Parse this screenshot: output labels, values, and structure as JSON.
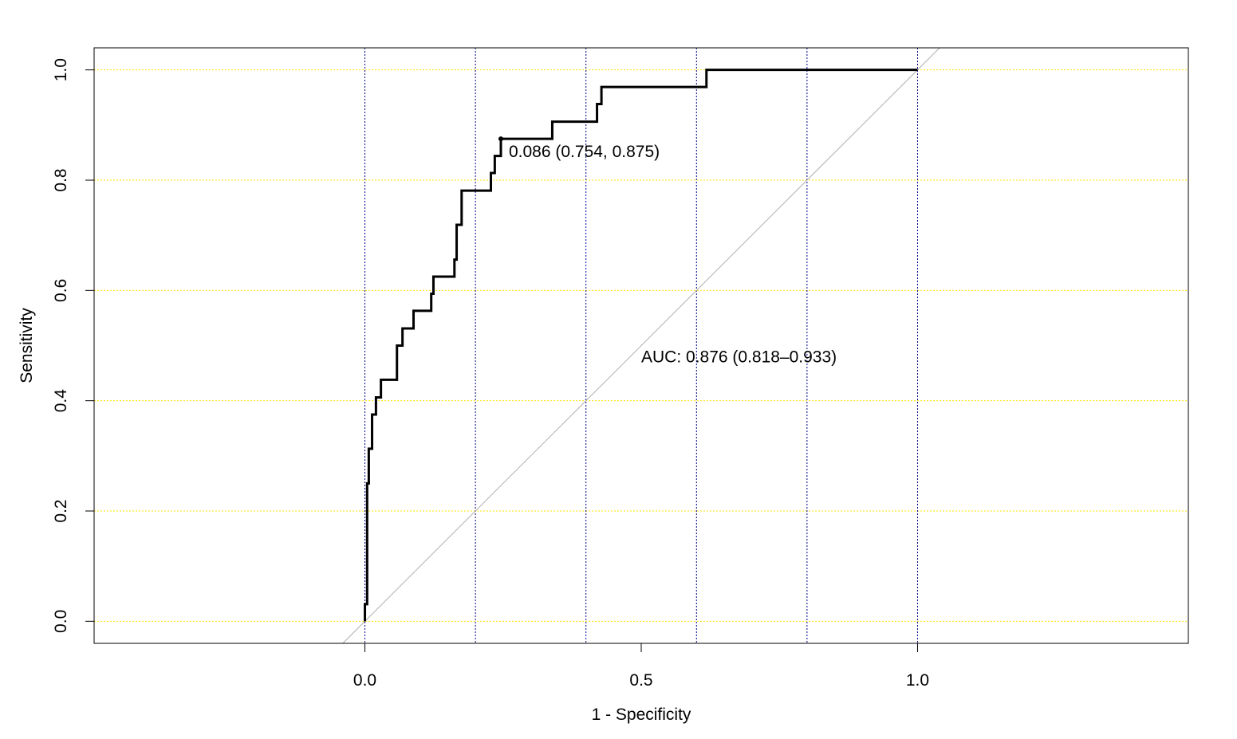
{
  "chart_data": {
    "type": "line",
    "title": "",
    "xlabel": "1 - Specificity",
    "ylabel": "Sensitivity",
    "xlim": [
      -0.49,
      1.49
    ],
    "ylim": [
      -0.04,
      1.04
    ],
    "x_ticks": [
      {
        "value": 0.0,
        "label": "0.0"
      },
      {
        "value": 0.5,
        "label": "0.5"
      },
      {
        "value": 1.0,
        "label": "1.0"
      }
    ],
    "y_ticks": [
      {
        "value": 0.0,
        "label": "0.0"
      },
      {
        "value": 0.2,
        "label": "0.2"
      },
      {
        "value": 0.4,
        "label": "0.4"
      },
      {
        "value": 0.6,
        "label": "0.6"
      },
      {
        "value": 0.8,
        "label": "0.8"
      },
      {
        "value": 1.0,
        "label": "1.0"
      }
    ],
    "grid": {
      "vertical": [
        0.0,
        0.2,
        0.4,
        0.6,
        0.8,
        1.0
      ],
      "horizontal": [
        0.0,
        0.2,
        0.4,
        0.6,
        0.8,
        1.0
      ],
      "vertical_color": "#00008b",
      "horizontal_color": "#ffe000"
    },
    "reference_line": {
      "from": [
        0,
        0
      ],
      "to": [
        1,
        1
      ],
      "color": "#b0b0b0"
    },
    "series": [
      {
        "color": "#000000",
        "points": [
          [
            0.0,
            0.0
          ],
          [
            0.0,
            0.031
          ],
          [
            0.004,
            0.031
          ],
          [
            0.004,
            0.25
          ],
          [
            0.007,
            0.25
          ],
          [
            0.007,
            0.313
          ],
          [
            0.013,
            0.313
          ],
          [
            0.013,
            0.375
          ],
          [
            0.02,
            0.375
          ],
          [
            0.02,
            0.406
          ],
          [
            0.029,
            0.406
          ],
          [
            0.029,
            0.438
          ],
          [
            0.058,
            0.438
          ],
          [
            0.058,
            0.5
          ],
          [
            0.068,
            0.5
          ],
          [
            0.068,
            0.531
          ],
          [
            0.088,
            0.531
          ],
          [
            0.088,
            0.563
          ],
          [
            0.12,
            0.563
          ],
          [
            0.12,
            0.594
          ],
          [
            0.124,
            0.594
          ],
          [
            0.124,
            0.625
          ],
          [
            0.162,
            0.625
          ],
          [
            0.162,
            0.656
          ],
          [
            0.166,
            0.656
          ],
          [
            0.166,
            0.719
          ],
          [
            0.175,
            0.719
          ],
          [
            0.175,
            0.781
          ],
          [
            0.228,
            0.781
          ],
          [
            0.228,
            0.813
          ],
          [
            0.235,
            0.813
          ],
          [
            0.235,
            0.844
          ],
          [
            0.246,
            0.844
          ],
          [
            0.246,
            0.875
          ],
          [
            0.339,
            0.875
          ],
          [
            0.339,
            0.906
          ],
          [
            0.42,
            0.906
          ],
          [
            0.42,
            0.938
          ],
          [
            0.428,
            0.938
          ],
          [
            0.428,
            0.969
          ],
          [
            0.618,
            0.969
          ],
          [
            0.618,
            1.0
          ],
          [
            1.0,
            1.0
          ]
        ]
      }
    ],
    "best_threshold": {
      "x": 0.246,
      "y": 0.875,
      "label": "0.086 (0.754, 0.875)"
    },
    "annotations": [
      {
        "x": 0.5,
        "y": 0.48,
        "text": "AUC: 0.876 (0.818–0.933)"
      }
    ]
  }
}
